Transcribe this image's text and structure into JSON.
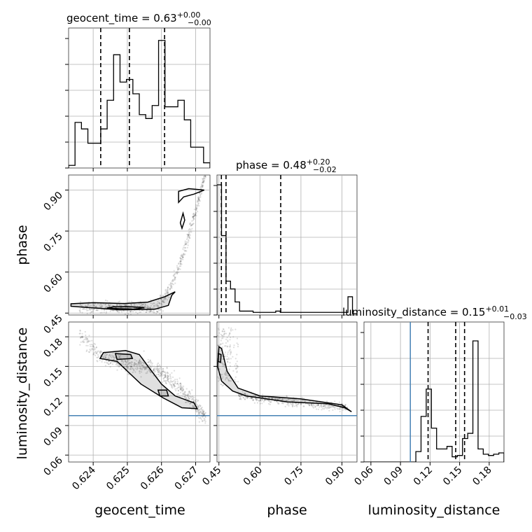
{
  "chart_data": {
    "type": "corner",
    "parameters": [
      "geocent_time",
      "phase",
      "luminosity_distance"
    ],
    "titles": [
      {
        "text": "geocent_time = 0.63",
        "sup": "+0.00",
        "sub": "−0.00"
      },
      {
        "text": "phase = 0.48",
        "sup": "+0.20",
        "sub": "−0.02"
      },
      {
        "text": "luminosity_distance = 0.15",
        "sup": "+0.01",
        "sub": "−0.03"
      }
    ],
    "ranges": [
      [
        0.62328,
        0.62742
      ],
      [
        0.443,
        0.955
      ],
      [
        0.053,
        0.195
      ]
    ],
    "truths": [
      null,
      null,
      0.1
    ],
    "ticks": {
      "geocent_time": {
        "values": [
          0.624,
          0.625,
          0.626,
          0.627
        ],
        "labels": [
          "0.624",
          "0.625",
          "0.626",
          "0.627"
        ]
      },
      "phase": {
        "values": [
          0.45,
          0.6,
          0.75,
          0.9
        ],
        "labels": [
          "0.45",
          "0.60",
          "0.75",
          "0.90"
        ]
      },
      "luminosity_distance": {
        "values": [
          0.06,
          0.09,
          0.12,
          0.15,
          0.18
        ],
        "labels": [
          "0.06",
          "0.09",
          "0.12",
          "0.15",
          "0.18"
        ]
      }
    },
    "quantiles": {
      "geocent_time": [
        0.62422,
        0.62506,
        0.62609
      ],
      "phase": [
        0.459,
        0.476,
        0.676
      ],
      "luminosity_distance": [
        0.118,
        0.146,
        0.155
      ]
    },
    "histograms": {
      "geocent_time": [
        0.02,
        0.35,
        0.3,
        0.19,
        0.19,
        0.3,
        0.52,
        0.87,
        0.66,
        0.68,
        0.57,
        0.41,
        0.38,
        0.48,
        0.98,
        0.47,
        0.47,
        0.52,
        0.37,
        0.16,
        0.16,
        0.04
      ],
      "phase": [
        1.0,
        0.61,
        0.26,
        0.2,
        0.1,
        0.03,
        0.03,
        0.03,
        0.02,
        0.02,
        0.02,
        0.02,
        0.02,
        0.03,
        0.02,
        0.02,
        0.02,
        0.02,
        0.02,
        0.02,
        0.02,
        0.02,
        0.02,
        0.02,
        0.02,
        0.02,
        0.02,
        0.02,
        0.02,
        0.14,
        0.01
      ],
      "luminosity_distance": [
        0.0,
        0.0,
        0.0,
        0.0,
        0.0,
        0.0,
        0.0,
        0.0,
        0.0,
        0.0,
        0.08,
        0.35,
        0.56,
        0.26,
        0.1,
        0.1,
        0.12,
        0.04,
        0.05,
        0.18,
        0.22,
        0.93,
        0.1,
        0.06,
        0.05,
        0.06,
        0.07
      ]
    },
    "grid": true
  }
}
